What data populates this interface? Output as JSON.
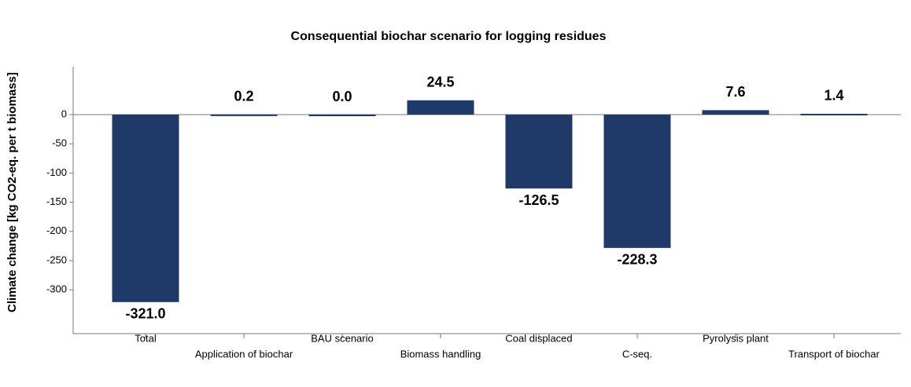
{
  "chart_data": {
    "type": "bar",
    "title": "Consequential biochar scenario for logging residues",
    "y_label": "Climate change [kg CO2-eq. per t biomass]",
    "categories": [
      "Total",
      "Application of biochar",
      "BAU scenario",
      "Biomass handling",
      "Coal displaced",
      "C-seq.",
      "Pyrolysis plant",
      "Transport of biochar"
    ],
    "values": [
      -321,
      0.2,
      0,
      24.5,
      -126.5,
      -228.3,
      7.6,
      1.4
    ],
    "value_labels": [
      "-321.0",
      "0.2",
      "0.0",
      "24.5",
      "-126.5",
      "-228.3",
      "7.6",
      "1.4"
    ],
    "color": "#1f3a68",
    "ylim": [
      -375,
      82
    ],
    "yticks": [
      0,
      -50,
      -100,
      -150,
      -200,
      -250,
      -300
    ],
    "grid": false
  }
}
